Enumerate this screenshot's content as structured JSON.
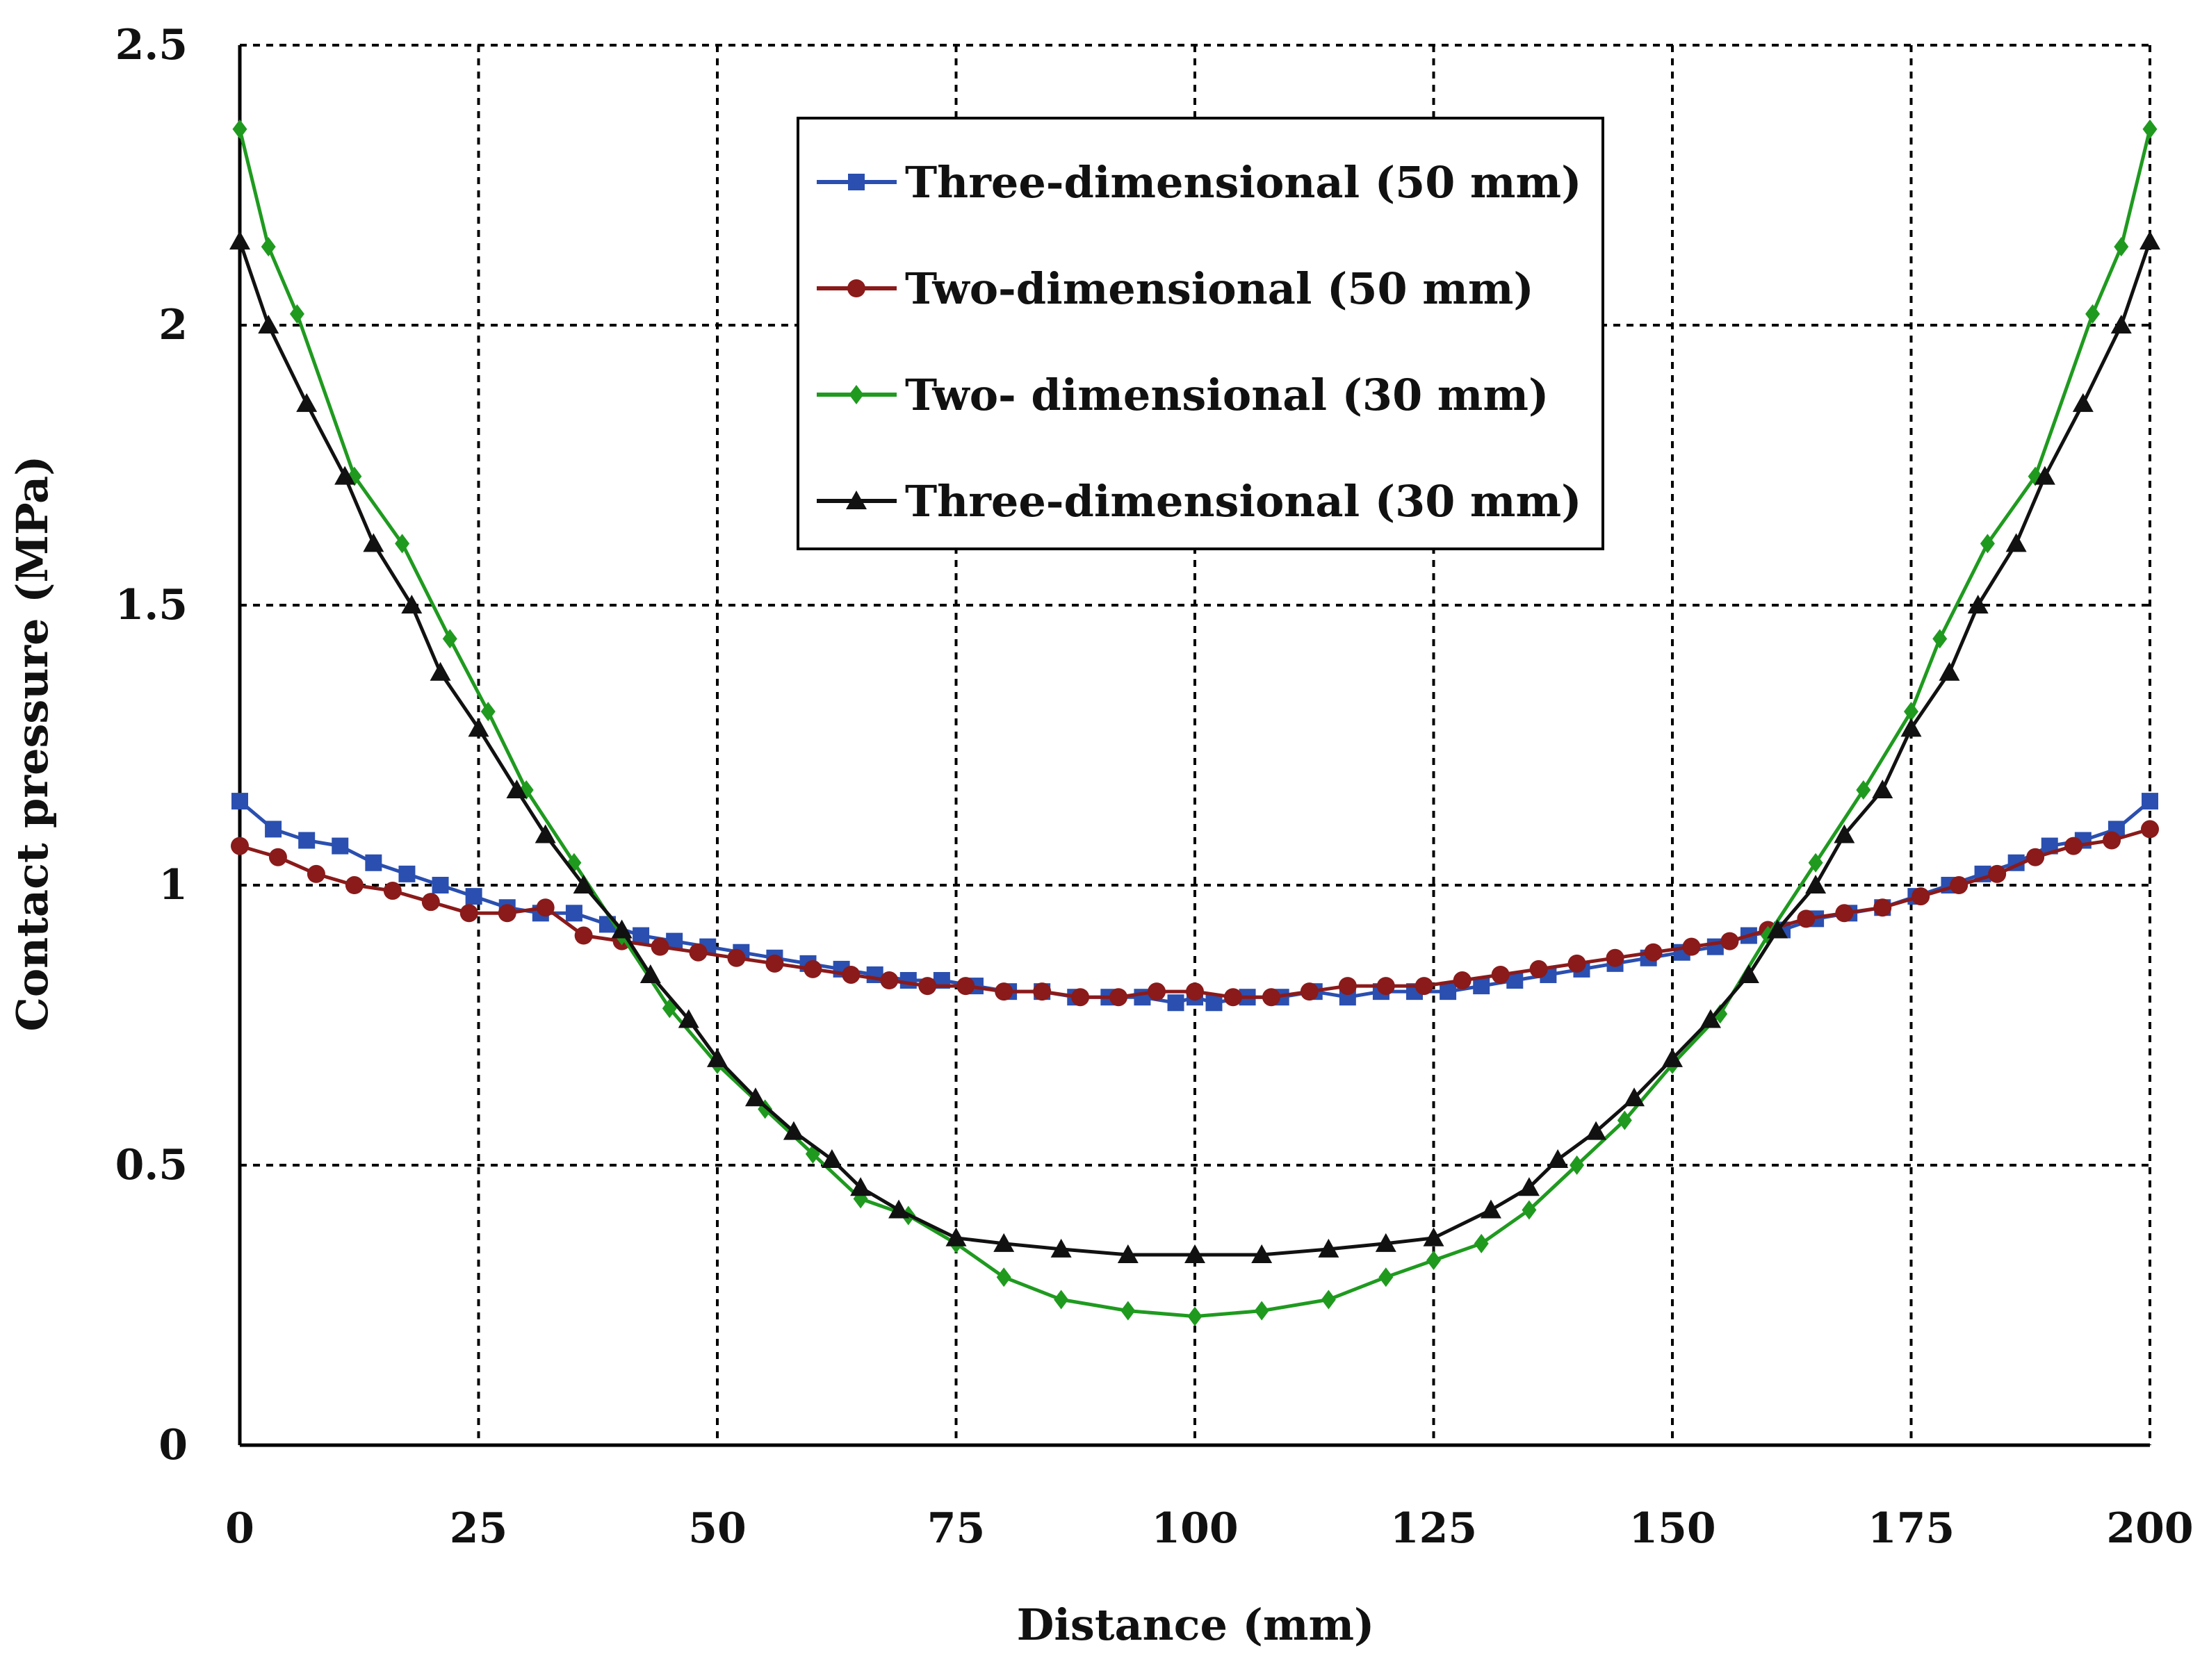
{
  "chart_data": {
    "type": "line",
    "title": "",
    "xlabel": "Distance (mm)",
    "ylabel": "Contact pressure (MPa)",
    "xlim": [
      0,
      200
    ],
    "ylim": [
      0,
      2.5
    ],
    "xticks": [
      0,
      25,
      50,
      75,
      100,
      125,
      150,
      175,
      200
    ],
    "yticks": [
      0,
      0.5,
      1,
      1.5,
      2,
      2.5
    ],
    "xtick_labels": [
      "0",
      "25",
      "50",
      "75",
      "100",
      "125",
      "150",
      "175",
      "200"
    ],
    "ytick_labels": [
      "0",
      "0.5",
      "1",
      "1.5",
      "2",
      "2.5"
    ],
    "grid": true,
    "legend_position": "top-center",
    "series": [
      {
        "name": "Three-dimensional (50 mm)",
        "color": "#2a4fb0",
        "marker": "square",
        "x": [
          0,
          3.5,
          7,
          10.5,
          14,
          17.5,
          21,
          24.5,
          28,
          31.5,
          35,
          38.5,
          42,
          45.5,
          49,
          52.5,
          56,
          59.5,
          63,
          66.5,
          70,
          73.5,
          77,
          80.5,
          84,
          87.5,
          91,
          94.5,
          98,
          100,
          102,
          105.5,
          109,
          112.5,
          116,
          119.5,
          123,
          126.5,
          130,
          133.5,
          137,
          140.5,
          144,
          147.5,
          151,
          154.5,
          158,
          161.5,
          165,
          168.5,
          172,
          175.5,
          179,
          182.5,
          186,
          189.5,
          193,
          196.5,
          200
        ],
        "y": [
          1.15,
          1.1,
          1.08,
          1.07,
          1.04,
          1.02,
          1.0,
          0.98,
          0.96,
          0.95,
          0.95,
          0.93,
          0.91,
          0.9,
          0.89,
          0.88,
          0.87,
          0.86,
          0.85,
          0.84,
          0.83,
          0.83,
          0.82,
          0.81,
          0.81,
          0.8,
          0.8,
          0.8,
          0.79,
          0.8,
          0.79,
          0.8,
          0.8,
          0.81,
          0.8,
          0.81,
          0.81,
          0.81,
          0.82,
          0.83,
          0.84,
          0.85,
          0.86,
          0.87,
          0.88,
          0.89,
          0.91,
          0.92,
          0.94,
          0.95,
          0.96,
          0.98,
          1.0,
          1.02,
          1.04,
          1.07,
          1.08,
          1.1,
          1.15
        ]
      },
      {
        "name": "Two-dimensional (50 mm)",
        "color": "#8b1a1a",
        "marker": "circle",
        "x": [
          0,
          4,
          8,
          12,
          16,
          20,
          24,
          28,
          32,
          36,
          40,
          44,
          48,
          52,
          56,
          60,
          64,
          68,
          72,
          76,
          80,
          84,
          88,
          92,
          96,
          100,
          104,
          108,
          112,
          116,
          120,
          124,
          128,
          132,
          136,
          140,
          144,
          148,
          152,
          156,
          160,
          164,
          168,
          172,
          176,
          180,
          184,
          188,
          192,
          196,
          200
        ],
        "y": [
          1.07,
          1.05,
          1.02,
          1.0,
          0.99,
          0.97,
          0.95,
          0.95,
          0.96,
          0.91,
          0.9,
          0.89,
          0.88,
          0.87,
          0.86,
          0.85,
          0.84,
          0.83,
          0.82,
          0.82,
          0.81,
          0.81,
          0.8,
          0.8,
          0.81,
          0.81,
          0.8,
          0.8,
          0.81,
          0.82,
          0.82,
          0.82,
          0.83,
          0.84,
          0.85,
          0.86,
          0.87,
          0.88,
          0.89,
          0.9,
          0.92,
          0.94,
          0.95,
          0.96,
          0.98,
          1.0,
          1.02,
          1.05,
          1.07,
          1.08,
          1.1
        ]
      },
      {
        "name": "Two- dimensional (30 mm)",
        "color": "#1f9a1f",
        "marker": "diamond",
        "x": [
          0,
          3,
          6,
          12,
          17,
          22,
          26,
          30,
          35,
          40,
          45,
          50,
          55,
          60,
          65,
          70,
          75,
          80,
          86,
          93,
          100,
          107,
          114,
          120,
          125,
          130,
          135,
          140,
          145,
          150,
          155,
          160,
          165,
          170,
          175,
          178,
          183,
          188,
          194,
          197,
          200
        ],
        "y": [
          2.35,
          2.14,
          2.02,
          1.73,
          1.61,
          1.44,
          1.31,
          1.17,
          1.04,
          0.91,
          0.78,
          0.68,
          0.6,
          0.52,
          0.44,
          0.41,
          0.36,
          0.3,
          0.26,
          0.24,
          0.23,
          0.24,
          0.26,
          0.3,
          0.33,
          0.36,
          0.42,
          0.5,
          0.58,
          0.68,
          0.77,
          0.91,
          1.04,
          1.17,
          1.31,
          1.44,
          1.61,
          1.73,
          2.02,
          2.14,
          2.35
        ]
      },
      {
        "name": "Three-dimensional (30 mm)",
        "color": "#111111",
        "marker": "triangle",
        "x": [
          0,
          3,
          7,
          11,
          14,
          18,
          21,
          25,
          29,
          32,
          36,
          40,
          43,
          47,
          50,
          54,
          58,
          62,
          65,
          69,
          75,
          80,
          86,
          93,
          100,
          107,
          114,
          120,
          125,
          131,
          135,
          138,
          142,
          146,
          150,
          154,
          158,
          161,
          165,
          168,
          172,
          175,
          179,
          182,
          186,
          189,
          193,
          197,
          200
        ],
        "y": [
          2.15,
          2.0,
          1.86,
          1.73,
          1.61,
          1.5,
          1.38,
          1.28,
          1.17,
          1.09,
          1.0,
          0.92,
          0.84,
          0.76,
          0.69,
          0.62,
          0.56,
          0.51,
          0.46,
          0.42,
          0.37,
          0.36,
          0.35,
          0.34,
          0.34,
          0.34,
          0.35,
          0.36,
          0.37,
          0.42,
          0.46,
          0.51,
          0.56,
          0.62,
          0.69,
          0.76,
          0.84,
          0.92,
          1.0,
          1.09,
          1.17,
          1.28,
          1.38,
          1.5,
          1.61,
          1.73,
          1.86,
          2.0,
          2.15
        ]
      }
    ]
  }
}
